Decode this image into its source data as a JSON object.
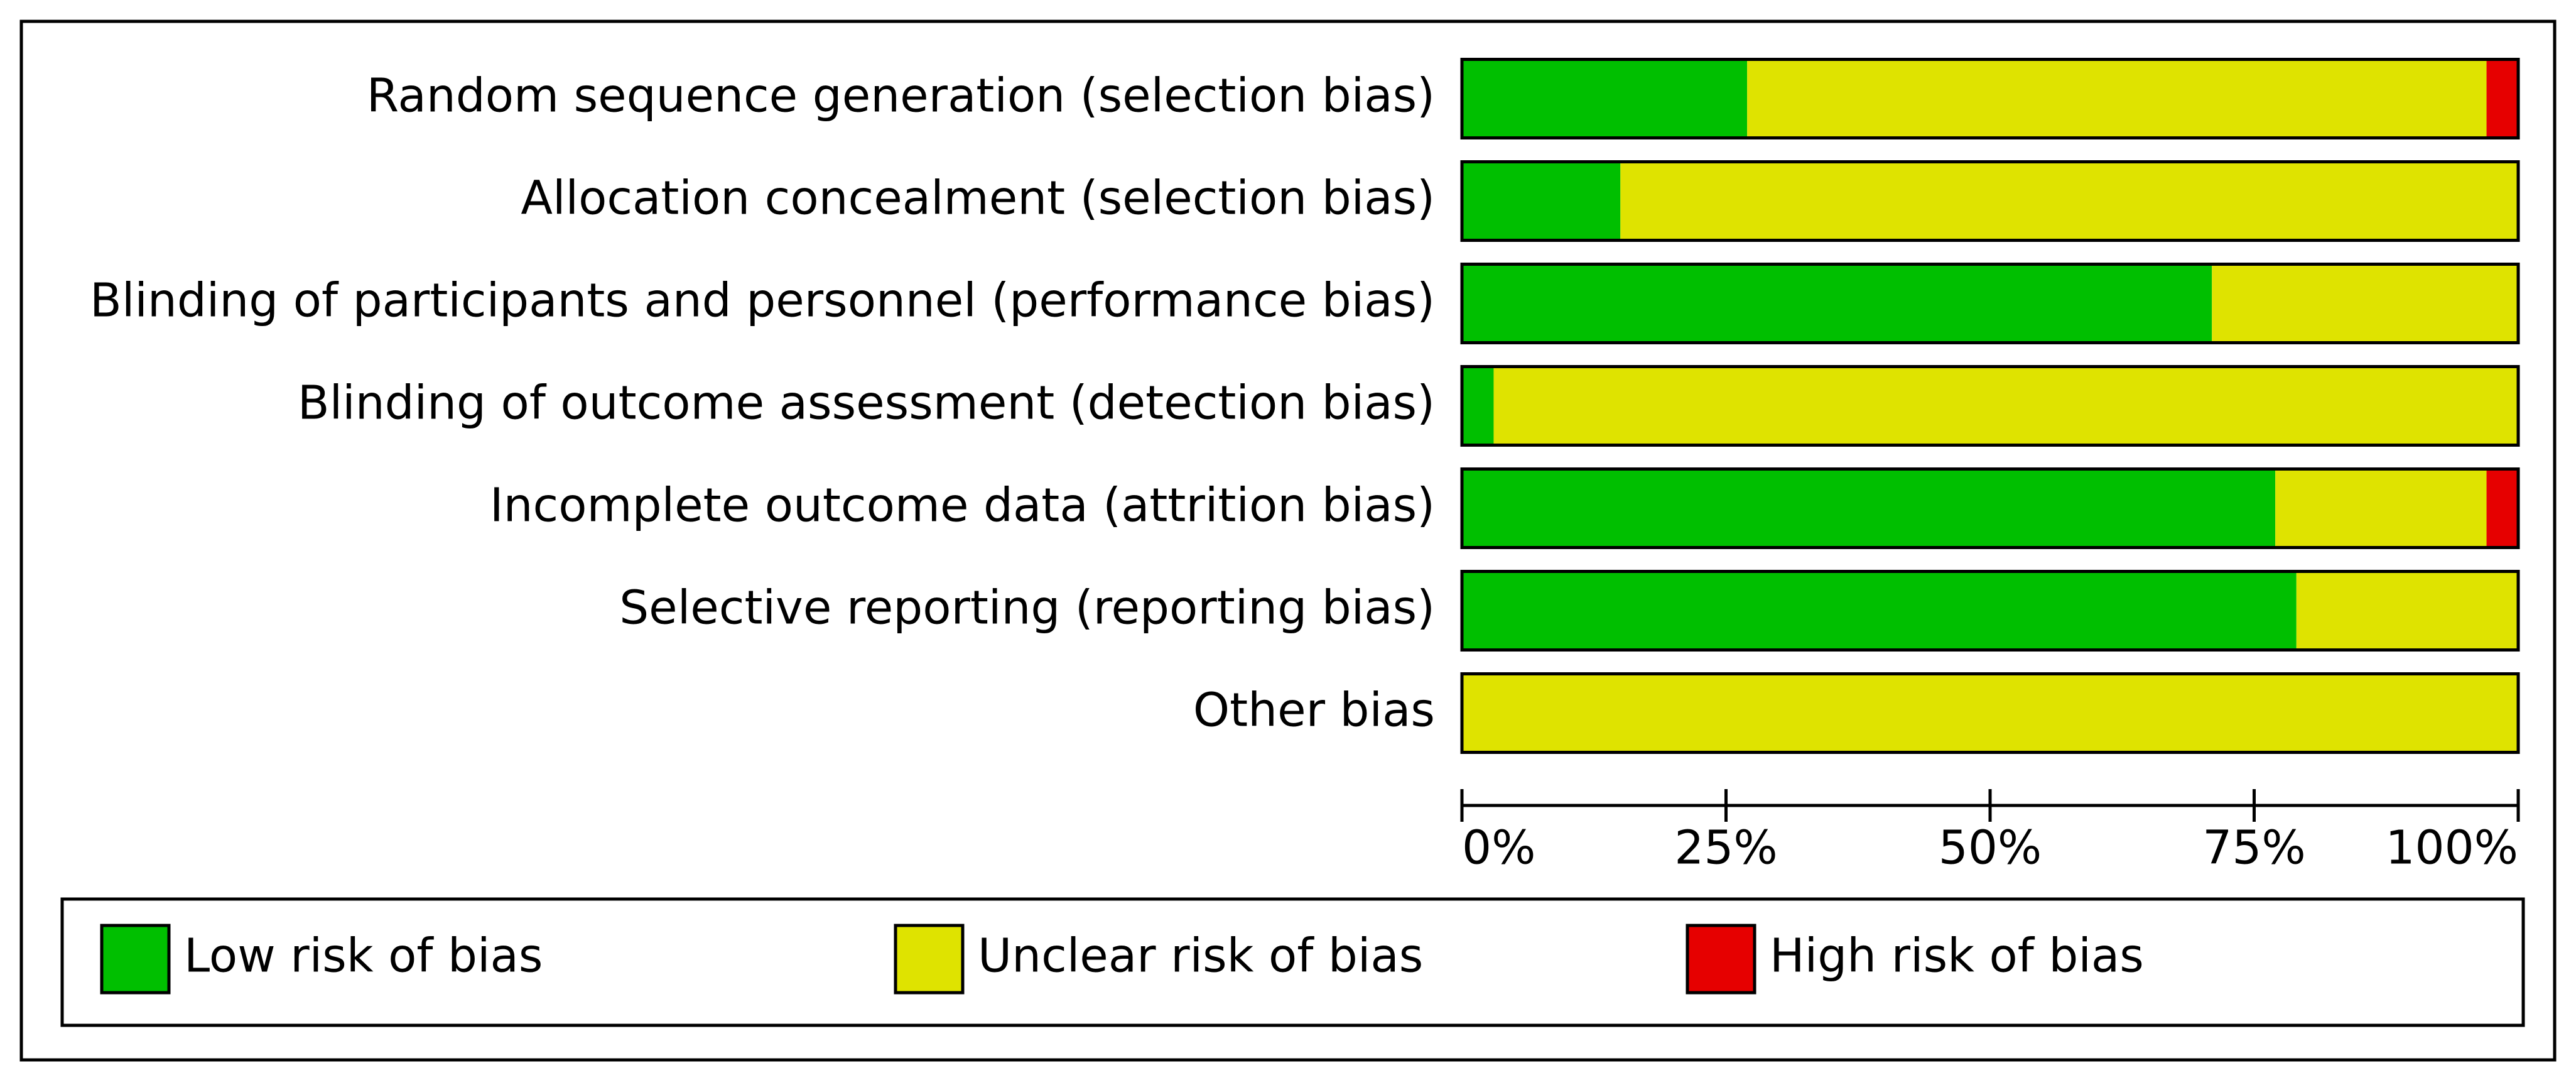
{
  "chart_data": {
    "type": "stacked-bar-horizontal",
    "categories": [
      "Random sequence generation (selection bias)",
      "Allocation concealment (selection bias)",
      "Blinding of participants and personnel (performance bias)",
      "Blinding of outcome assessment (detection bias)",
      "Incomplete outcome data (attrition bias)",
      "Selective reporting (reporting bias)",
      "Other bias"
    ],
    "series": [
      {
        "name": "Low risk of bias",
        "color": "#00bf00",
        "values": [
          27,
          15,
          71,
          3,
          77,
          79,
          0
        ]
      },
      {
        "name": "Unclear risk of bias",
        "color": "#dfe300",
        "values": [
          70,
          85,
          29,
          97,
          20,
          21,
          100
        ]
      },
      {
        "name": "High risk of bias",
        "color": "#e60000",
        "values": [
          3,
          0,
          0,
          0,
          3,
          0,
          0
        ]
      }
    ],
    "xlim": [
      0,
      100
    ],
    "xticks": [
      {
        "value": 0,
        "label": "0%"
      },
      {
        "value": 25,
        "label": "25%"
      },
      {
        "value": 50,
        "label": "50%"
      },
      {
        "value": 75,
        "label": "75%"
      },
      {
        "value": 100,
        "label": "100%"
      }
    ]
  }
}
